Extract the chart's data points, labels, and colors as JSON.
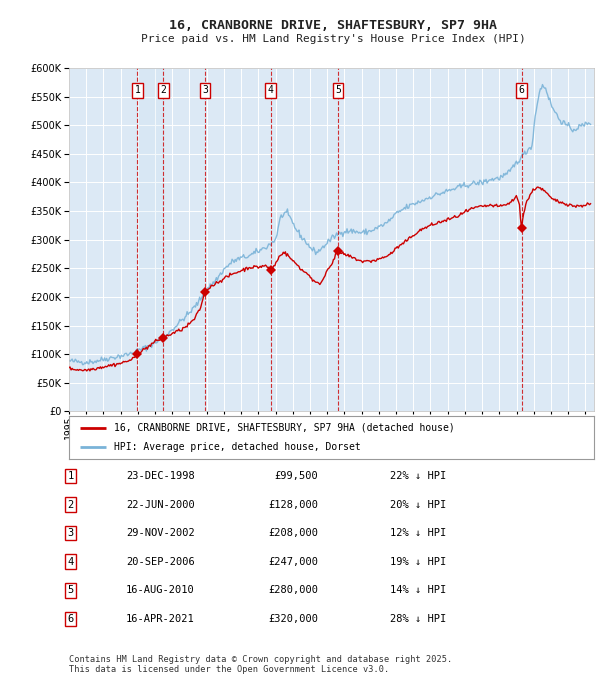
{
  "title": "16, CRANBORNE DRIVE, SHAFTESBURY, SP7 9HA",
  "subtitle": "Price paid vs. HM Land Registry's House Price Index (HPI)",
  "background_color": "#ffffff",
  "plot_bg_color": "#dce9f5",
  "grid_color": "#ffffff",
  "hpi_color": "#7ab3d8",
  "price_color": "#cc0000",
  "ylim": [
    0,
    600000
  ],
  "yticks": [
    0,
    50000,
    100000,
    150000,
    200000,
    250000,
    300000,
    350000,
    400000,
    450000,
    500000,
    550000,
    600000
  ],
  "xlim_start": 1995.0,
  "xlim_end": 2025.5,
  "transactions": [
    {
      "num": 1,
      "date": "23-DEC-1998",
      "date_x": 1998.97,
      "price": 99500,
      "hpi_pct": "22%"
    },
    {
      "num": 2,
      "date": "22-JUN-2000",
      "date_x": 2000.47,
      "price": 128000,
      "hpi_pct": "20%"
    },
    {
      "num": 3,
      "date": "29-NOV-2002",
      "date_x": 2002.9,
      "price": 208000,
      "hpi_pct": "12%"
    },
    {
      "num": 4,
      "date": "20-SEP-2006",
      "date_x": 2006.72,
      "price": 247000,
      "hpi_pct": "19%"
    },
    {
      "num": 5,
      "date": "16-AUG-2010",
      "date_x": 2010.62,
      "price": 280000,
      "hpi_pct": "14%"
    },
    {
      "num": 6,
      "date": "16-APR-2021",
      "date_x": 2021.29,
      "price": 320000,
      "hpi_pct": "28%"
    }
  ],
  "legend_line1": "16, CRANBORNE DRIVE, SHAFTESBURY, SP7 9HA (detached house)",
  "legend_line2": "HPI: Average price, detached house, Dorset",
  "footnote1": "Contains HM Land Registry data © Crown copyright and database right 2025.",
  "footnote2": "This data is licensed under the Open Government Licence v3.0.",
  "hpi_anchors": [
    [
      1995.0,
      88000
    ],
    [
      1995.5,
      87000
    ],
    [
      1996.0,
      86000
    ],
    [
      1996.5,
      87500
    ],
    [
      1997.0,
      91000
    ],
    [
      1997.5,
      94000
    ],
    [
      1998.0,
      97000
    ],
    [
      1998.5,
      100000
    ],
    [
      1999.0,
      106000
    ],
    [
      1999.5,
      112000
    ],
    [
      2000.0,
      120000
    ],
    [
      2000.5,
      130000
    ],
    [
      2001.0,
      143000
    ],
    [
      2001.5,
      158000
    ],
    [
      2002.0,
      172000
    ],
    [
      2002.5,
      190000
    ],
    [
      2003.0,
      213000
    ],
    [
      2003.5,
      228000
    ],
    [
      2004.0,
      248000
    ],
    [
      2004.5,
      262000
    ],
    [
      2005.0,
      268000
    ],
    [
      2005.5,
      272000
    ],
    [
      2006.0,
      280000
    ],
    [
      2006.5,
      288000
    ],
    [
      2007.0,
      300000
    ],
    [
      2007.3,
      340000
    ],
    [
      2007.6,
      348000
    ],
    [
      2007.9,
      335000
    ],
    [
      2008.2,
      318000
    ],
    [
      2008.5,
      305000
    ],
    [
      2008.8,
      295000
    ],
    [
      2009.1,
      283000
    ],
    [
      2009.4,
      278000
    ],
    [
      2009.7,
      285000
    ],
    [
      2010.0,
      295000
    ],
    [
      2010.5,
      308000
    ],
    [
      2011.0,
      315000
    ],
    [
      2011.5,
      315000
    ],
    [
      2012.0,
      312000
    ],
    [
      2012.5,
      315000
    ],
    [
      2013.0,
      322000
    ],
    [
      2013.5,
      330000
    ],
    [
      2014.0,
      345000
    ],
    [
      2014.5,
      355000
    ],
    [
      2015.0,
      362000
    ],
    [
      2015.5,
      368000
    ],
    [
      2016.0,
      375000
    ],
    [
      2016.5,
      380000
    ],
    [
      2017.0,
      385000
    ],
    [
      2017.5,
      390000
    ],
    [
      2018.0,
      395000
    ],
    [
      2018.5,
      398000
    ],
    [
      2019.0,
      400000
    ],
    [
      2019.5,
      405000
    ],
    [
      2020.0,
      408000
    ],
    [
      2020.5,
      415000
    ],
    [
      2021.0,
      435000
    ],
    [
      2021.3,
      445000
    ],
    [
      2021.6,
      455000
    ],
    [
      2021.9,
      465000
    ],
    [
      2022.1,
      520000
    ],
    [
      2022.3,
      555000
    ],
    [
      2022.5,
      570000
    ],
    [
      2022.7,
      565000
    ],
    [
      2022.9,
      545000
    ],
    [
      2023.1,
      530000
    ],
    [
      2023.3,
      520000
    ],
    [
      2023.5,
      510000
    ],
    [
      2023.7,
      505000
    ],
    [
      2023.9,
      500000
    ],
    [
      2024.1,
      495000
    ],
    [
      2024.3,
      492000
    ],
    [
      2024.5,
      495000
    ],
    [
      2024.7,
      498000
    ],
    [
      2024.9,
      500000
    ],
    [
      2025.2,
      505000
    ]
  ],
  "price_anchors": [
    [
      1995.0,
      75000
    ],
    [
      1995.5,
      73000
    ],
    [
      1996.0,
      72000
    ],
    [
      1996.5,
      75000
    ],
    [
      1997.0,
      78000
    ],
    [
      1997.5,
      81000
    ],
    [
      1998.0,
      84000
    ],
    [
      1998.7,
      91000
    ],
    [
      1998.97,
      99500
    ],
    [
      1999.3,
      107000
    ],
    [
      1999.7,
      115000
    ],
    [
      2000.0,
      122000
    ],
    [
      2000.3,
      126000
    ],
    [
      2000.47,
      128000
    ],
    [
      2000.7,
      132000
    ],
    [
      2001.0,
      136000
    ],
    [
      2001.3,
      140000
    ],
    [
      2001.6,
      144000
    ],
    [
      2001.9,
      150000
    ],
    [
      2002.3,
      162000
    ],
    [
      2002.6,
      178000
    ],
    [
      2002.9,
      208000
    ],
    [
      2003.2,
      218000
    ],
    [
      2003.6,
      225000
    ],
    [
      2004.0,
      232000
    ],
    [
      2004.5,
      240000
    ],
    [
      2005.0,
      246000
    ],
    [
      2005.5,
      252000
    ],
    [
      2006.0,
      252000
    ],
    [
      2006.4,
      255000
    ],
    [
      2006.72,
      247000
    ],
    [
      2007.0,
      258000
    ],
    [
      2007.3,
      275000
    ],
    [
      2007.5,
      278000
    ],
    [
      2007.8,
      270000
    ],
    [
      2008.0,
      263000
    ],
    [
      2008.3,
      255000
    ],
    [
      2008.6,
      245000
    ],
    [
      2008.9,
      240000
    ],
    [
      2009.2,
      228000
    ],
    [
      2009.5,
      222000
    ],
    [
      2009.8,
      232000
    ],
    [
      2010.0,
      248000
    ],
    [
      2010.3,
      260000
    ],
    [
      2010.62,
      280000
    ],
    [
      2010.9,
      275000
    ],
    [
      2011.2,
      272000
    ],
    [
      2011.5,
      268000
    ],
    [
      2011.8,
      265000
    ],
    [
      2012.0,
      262000
    ],
    [
      2012.3,
      262000
    ],
    [
      2012.6,
      263000
    ],
    [
      2012.9,
      265000
    ],
    [
      2013.2,
      268000
    ],
    [
      2013.5,
      272000
    ],
    [
      2013.8,
      278000
    ],
    [
      2014.0,
      285000
    ],
    [
      2014.5,
      295000
    ],
    [
      2015.0,
      308000
    ],
    [
      2015.5,
      318000
    ],
    [
      2016.0,
      325000
    ],
    [
      2016.5,
      330000
    ],
    [
      2017.0,
      335000
    ],
    [
      2017.5,
      340000
    ],
    [
      2018.0,
      348000
    ],
    [
      2018.5,
      355000
    ],
    [
      2019.0,
      358000
    ],
    [
      2019.5,
      360000
    ],
    [
      2020.0,
      358000
    ],
    [
      2020.5,
      362000
    ],
    [
      2021.0,
      375000
    ],
    [
      2021.15,
      365000
    ],
    [
      2021.29,
      320000
    ],
    [
      2021.4,
      345000
    ],
    [
      2021.6,
      368000
    ],
    [
      2021.8,
      378000
    ],
    [
      2022.0,
      388000
    ],
    [
      2022.2,
      392000
    ],
    [
      2022.4,
      390000
    ],
    [
      2022.6,
      385000
    ],
    [
      2022.8,
      380000
    ],
    [
      2023.0,
      372000
    ],
    [
      2023.3,
      368000
    ],
    [
      2023.6,
      365000
    ],
    [
      2023.9,
      363000
    ],
    [
      2024.2,
      360000
    ],
    [
      2024.5,
      358000
    ],
    [
      2024.8,
      360000
    ],
    [
      2025.2,
      362000
    ]
  ]
}
